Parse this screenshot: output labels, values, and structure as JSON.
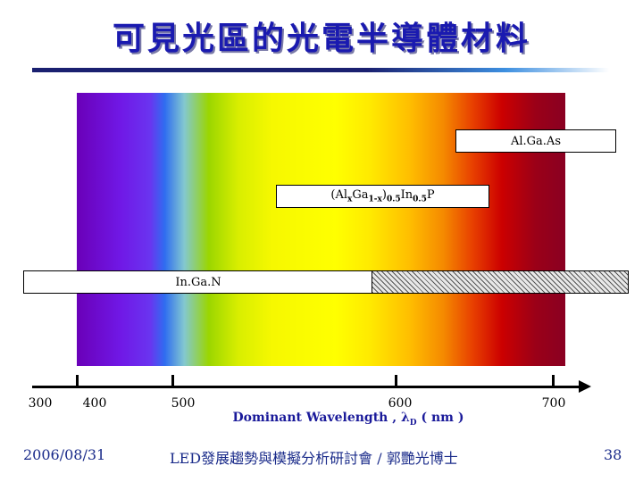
{
  "slide": {
    "title": "可見光區的光電半導體材料",
    "footer_date": "2006/08/31",
    "footer_center": "LED發展趨勢與模擬分析研討會 / 郭艷光博士",
    "page_number": "38"
  },
  "diagram": {
    "axis": {
      "label_prefix": "Dominant Wavelength , ",
      "label_symbol": "λ",
      "label_subscript": "D",
      "label_suffix": " ( nm )",
      "ticks": [
        "300",
        "400",
        "500",
        "600",
        "700"
      ]
    },
    "materials": {
      "algaas": {
        "label": "Al.Ga.As"
      },
      "algainp": {
        "p1": "(Al",
        "s1": "x",
        "p2": "Ga",
        "s2": "1-x",
        "p3": ")",
        "s3": "0.5",
        "p4": "In",
        "s4": "0.5",
        "p5": "P"
      },
      "ingan": {
        "label": "In.Ga.N"
      }
    }
  }
}
